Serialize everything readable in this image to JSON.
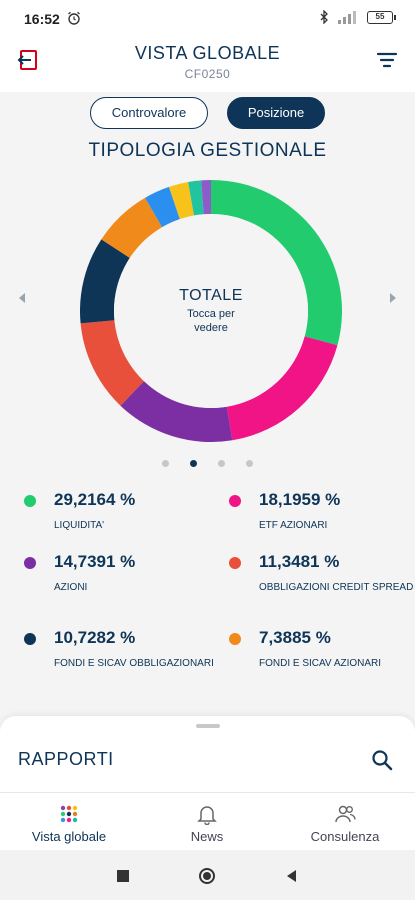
{
  "status_bar": {
    "time": "16:52",
    "battery": "55",
    "icons": [
      "alarm-icon",
      "bluetooth-icon",
      "signal-icon",
      "battery-icon"
    ]
  },
  "header": {
    "title": "VISTA GLOBALE",
    "subtitle": "CF0250"
  },
  "segments": {
    "left_label": "Controvalore",
    "right_label": "Posizione",
    "selected": "Posizione"
  },
  "section": {
    "title": "TIPOLOGIA GESTIONALE"
  },
  "donut": {
    "center_title": "TOTALE",
    "center_hint": "Tocca per vedere"
  },
  "pager": {
    "count": 4,
    "active_index": 1
  },
  "legend": [
    {
      "percent": "29,2164 %",
      "label": "LIQUIDITA'",
      "color": "#22cc6e"
    },
    {
      "percent": "18,1959 %",
      "label": "ETF AZIONARI",
      "color": "#f01486"
    },
    {
      "percent": "14,7391 %",
      "label": "AZIONI",
      "color": "#7b2fa3"
    },
    {
      "percent": "11,3481 %",
      "label": "OBBLIGAZIONI CREDIT SPREAD",
      "color": "#e8503c"
    },
    {
      "percent": "10,7282 %",
      "label": "FONDI E SICAV OBBLIGAZIONARI",
      "color": "#0f3556"
    },
    {
      "percent": "7,3885 %",
      "label": "FONDI E SICAV AZIONARI",
      "color": "#ef8a1b"
    }
  ],
  "donut_extra_segments": [
    {
      "name": "blue",
      "percent": 3.2,
      "color": "#2b8ff0"
    },
    {
      "name": "yellow",
      "percent": 2.4,
      "color": "#f7c31a"
    },
    {
      "name": "teal",
      "percent": 1.6,
      "color": "#22c4a0"
    },
    {
      "name": "purple",
      "percent": 1.2,
      "color": "#8e5cc9"
    }
  ],
  "sheet": {
    "title": "RAPPORTI"
  },
  "bottom_nav": [
    {
      "label": "Vista globale",
      "icon": "grid-dots-icon"
    },
    {
      "label": "News",
      "icon": "bell-icon"
    },
    {
      "label": "Consulenza",
      "icon": "people-icon"
    }
  ],
  "colors": {
    "primary": "#0e3457",
    "background": "#f4f4f4"
  }
}
